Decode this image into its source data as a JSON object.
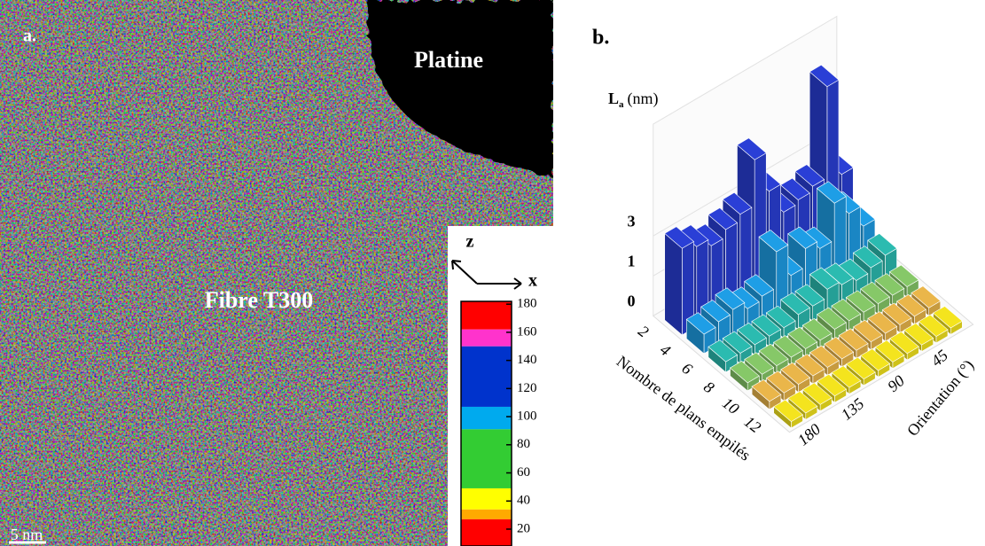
{
  "panel_a": {
    "label": "a.",
    "platine": "Platine",
    "fibre": "Fibre T300",
    "axis_z": "z",
    "axis_x": "x",
    "scale_bar": "5 nm",
    "colorbar": {
      "lim": [
        8,
        182
      ],
      "ticks": [
        180,
        160,
        140,
        120,
        100,
        80,
        60,
        40,
        20
      ],
      "segments": [
        {
          "from": 162,
          "to": 182,
          "color": "#ff0000"
        },
        {
          "from": 150,
          "to": 162,
          "color": "#ff33cc"
        },
        {
          "from": 107,
          "to": 150,
          "color": "#0033cc"
        },
        {
          "from": 91,
          "to": 107,
          "color": "#00aaee"
        },
        {
          "from": 49,
          "to": 91,
          "color": "#33cc33"
        },
        {
          "from": 34,
          "to": 49,
          "color": "#ffff00"
        },
        {
          "from": 27,
          "to": 34,
          "color": "#ffaa00"
        },
        {
          "from": 8,
          "to": 27,
          "color": "#ff0000"
        }
      ]
    }
  },
  "chart_data": {
    "type": "bar3d",
    "label": "b.",
    "zlabel": {
      "main": "L",
      "sub": "a",
      "unit": "(nm)"
    },
    "xlabel": "Nombre de plans empilés",
    "ylabel": "Orientation (°)",
    "zscale": "log1p",
    "zticks": [
      0,
      1,
      3
    ],
    "xticks": [
      2,
      4,
      6,
      8,
      10,
      12
    ],
    "yticks": [
      180,
      135,
      90,
      45
    ],
    "planes": [
      2,
      4,
      6,
      8,
      10,
      12
    ],
    "orientations": [
      15,
      30,
      45,
      60,
      75,
      90,
      105,
      120,
      135,
      150,
      165,
      180
    ],
    "series": [
      {
        "color": "#2a3fd6",
        "values": [
          2.2,
          16,
          2.5,
          2.2,
          2,
          4,
          9,
          3.5,
          3,
          2.5,
          3,
          3.5
        ]
      },
      {
        "color": "#1e9ee6",
        "values": [
          0.8,
          1.6,
          2.6,
          0.9,
          1.2,
          0.6,
          1.8,
          0.5,
          0.4,
          0.6,
          0.5,
          0.4
        ]
      },
      {
        "color": "#2bbbb0",
        "values": [
          0.5,
          0.4,
          0.3,
          0.4,
          0.5,
          0.3,
          0.3,
          0.2,
          0.2,
          0.2,
          0.2,
          0.2
        ]
      },
      {
        "color": "#86c868",
        "values": [
          0.2,
          0.2,
          0.2,
          0.2,
          0.2,
          0.2,
          0.15,
          0.15,
          0.15,
          0.15,
          0.15,
          0.15
        ]
      },
      {
        "color": "#eab64a",
        "values": [
          0.15,
          0.15,
          0.15,
          0.15,
          0.15,
          0.15,
          0.15,
          0.15,
          0.15,
          0.15,
          0.15,
          0.15
        ]
      },
      {
        "color": "#f4e41e",
        "values": [
          0.12,
          0.12,
          0.12,
          0.12,
          0.12,
          0.12,
          0.12,
          0.12,
          0.12,
          0.12,
          0.12,
          0.12
        ]
      }
    ]
  }
}
